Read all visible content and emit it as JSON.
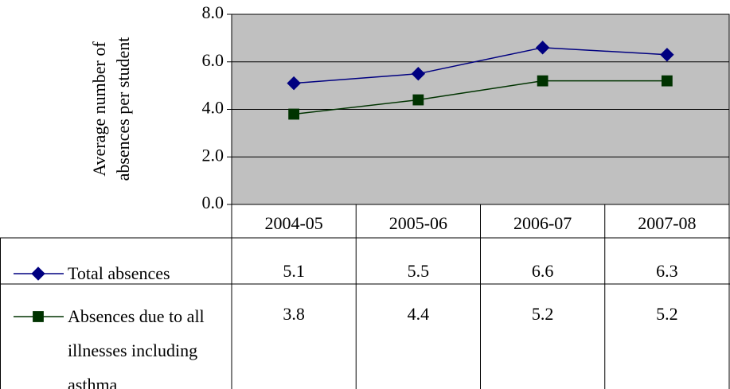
{
  "chart_data": {
    "type": "line",
    "y_axis_label": "Average number of absences per student",
    "categories": [
      "2004-05",
      "2005-06",
      "2006-07",
      "2007-08"
    ],
    "series": [
      {
        "name": "Total absences",
        "color": "#000080",
        "marker": "diamond",
        "values": [
          5.1,
          5.5,
          6.6,
          6.3
        ]
      },
      {
        "name": "Absences due to all illnesses including asthma",
        "color": "#003300",
        "marker": "square",
        "values": [
          3.8,
          4.4,
          5.2,
          5.2
        ]
      }
    ],
    "ylim": [
      0,
      8
    ],
    "yticks": [
      {
        "value": 0,
        "label": "0.0"
      },
      {
        "value": 2,
        "label": "2.0"
      },
      {
        "value": 4,
        "label": "4.0"
      },
      {
        "value": 6,
        "label": "6.0"
      },
      {
        "value": 8,
        "label": "8.0"
      }
    ],
    "grid": true,
    "plot_background": "#c0c0c0",
    "data_table": true
  }
}
